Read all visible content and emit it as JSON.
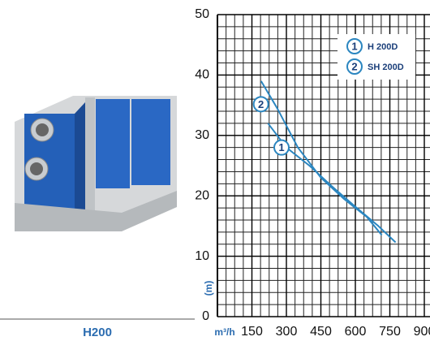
{
  "product": {
    "caption": "H200"
  },
  "chart_data": {
    "type": "line",
    "x_label": "m³/h",
    "y_label": "(m)",
    "xlim": [
      0,
      900
    ],
    "xticks": [
      150,
      300,
      450,
      600,
      750,
      900
    ],
    "ylim": [
      0,
      50
    ],
    "yticks": [
      0,
      10,
      20,
      30,
      40,
      50
    ],
    "grid": true,
    "legend": "top-right",
    "series": [
      {
        "name": "H 200D",
        "label": "1",
        "color": "#2b86c0",
        "x": [
          220,
          300,
          400,
          500,
          600,
          700,
          775
        ],
        "values": [
          32,
          28,
          25,
          21.5,
          18.2,
          15,
          12.3
        ]
      },
      {
        "name": "SH 200D",
        "label": "2",
        "color": "#2b86c0",
        "x": [
          190,
          260,
          350,
          450,
          550,
          650,
          715
        ],
        "values": [
          39,
          34.5,
          28,
          23,
          19.5,
          16.5,
          13.5
        ]
      }
    ]
  }
}
